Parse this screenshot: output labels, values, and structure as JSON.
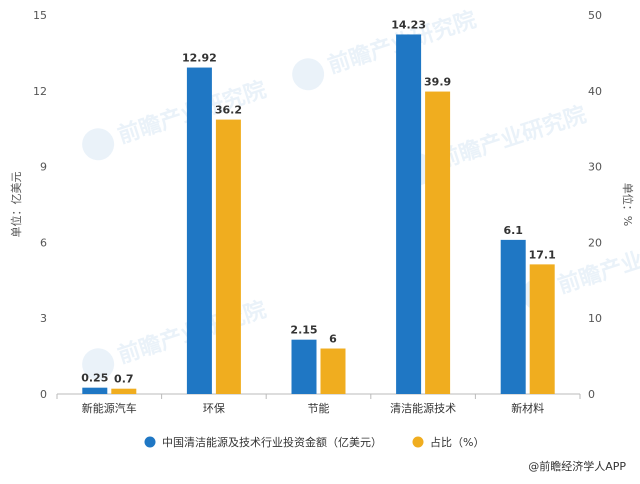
{
  "chart_data": {
    "type": "bar",
    "categories": [
      "新能源汽车",
      "环保",
      "节能",
      "清洁能源技术",
      "新材料"
    ],
    "series": [
      {
        "name": "中国清洁能源及技术行业投资金额（亿美元）",
        "values": [
          0.25,
          12.92,
          2.15,
          14.23,
          6.1
        ],
        "labels": [
          "0.25",
          "12.92",
          "2.15",
          "14.23",
          "6.1"
        ],
        "color": "#1f77c4",
        "axis": "left"
      },
      {
        "name": "占比（%）",
        "values": [
          0.7,
          36.2,
          6,
          39.9,
          17.1
        ],
        "labels": [
          "0.7",
          "36.2",
          "6",
          "39.9",
          "17.1"
        ],
        "color": "#f0ad1f",
        "axis": "right"
      }
    ],
    "ylabel": "单位：亿美元",
    "ylabel_right": "单位：%",
    "ylim": [
      0,
      15
    ],
    "ylim_right": [
      0,
      50
    ],
    "yticks": [
      "0",
      "3",
      "6",
      "9",
      "12",
      "15"
    ],
    "yticks_right": [
      "0",
      "10",
      "20",
      "30",
      "40",
      "50"
    ],
    "grid": false,
    "legend_position": "bottom"
  },
  "source": "@前瞻经济学人APP",
  "watermark": "前瞻产业研究院"
}
